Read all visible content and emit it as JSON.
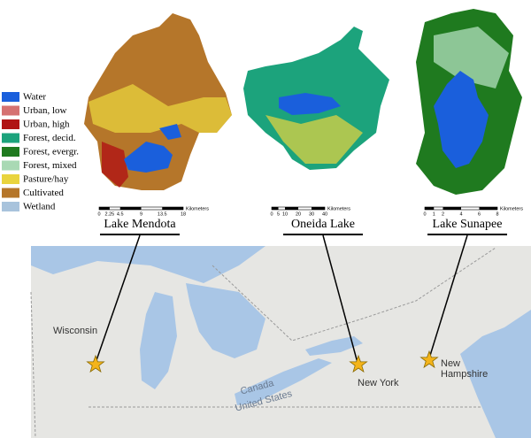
{
  "legend": {
    "items": [
      {
        "label": "Water",
        "color": "#1a5fdc"
      },
      {
        "label": "Urban, low",
        "color": "#d57272"
      },
      {
        "label": "Urban, high",
        "color": "#b01414"
      },
      {
        "label": "Forest, decid.",
        "color": "#1ca37c"
      },
      {
        "label": "Forest, evergr.",
        "color": "#1f7a1f"
      },
      {
        "label": "Forest, mixed",
        "color": "#a9d9b4"
      },
      {
        "label": "Pasture/hay",
        "color": "#e9d43e"
      },
      {
        "label": "Cultivated",
        "color": "#b5762a"
      },
      {
        "label": "Wetland",
        "color": "#a8c3dc"
      }
    ]
  },
  "lakes": [
    {
      "name": "Lake Mendota",
      "scale_labels": [
        "0",
        "2.25",
        "4.5",
        "9",
        "13.5",
        "18"
      ],
      "scale_unit": "Kilometers"
    },
    {
      "name": "Oneida Lake",
      "scale_labels": [
        "0",
        "5",
        "10",
        "20",
        "30",
        "40"
      ],
      "scale_unit": "Kilometers"
    },
    {
      "name": "Lake Sunapee",
      "scale_labels": [
        "0",
        "1",
        "2",
        "4",
        "6",
        "8"
      ],
      "scale_unit": "Kilometers"
    }
  ],
  "map": {
    "labels": {
      "wisconsin": "Wisconsin",
      "new_york": "New York",
      "new_hampshire": [
        "New",
        "Hampshire"
      ],
      "canada": "Canada",
      "united_states": "United States"
    }
  }
}
